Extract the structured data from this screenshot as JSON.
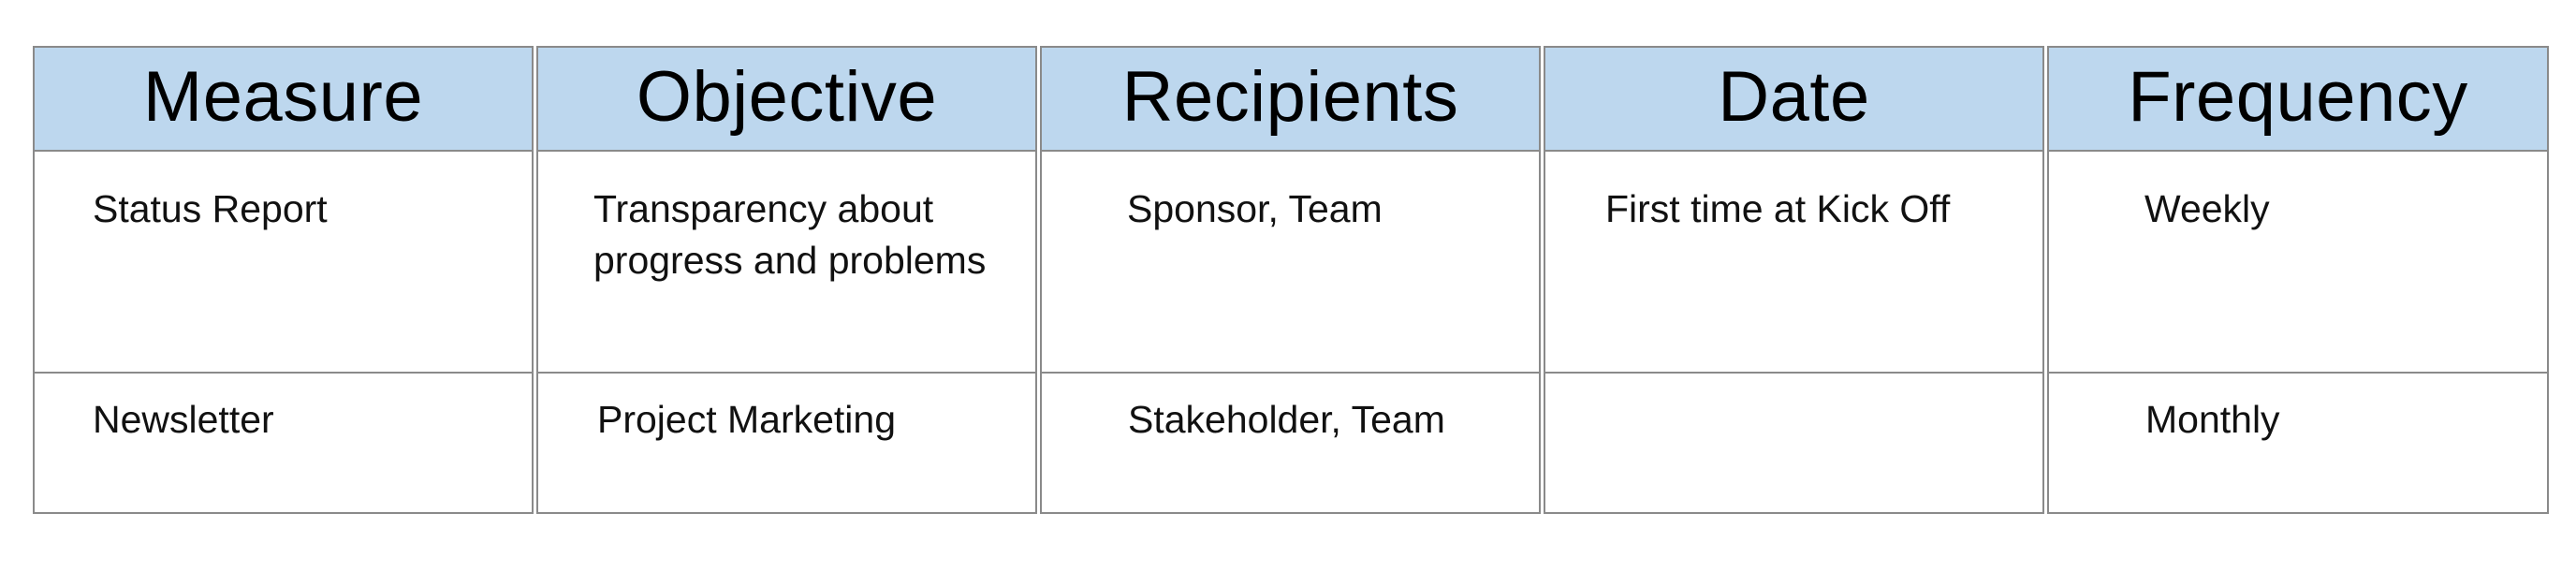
{
  "table": {
    "headers": [
      "Measure",
      "Objective",
      "Recipients",
      "Date",
      "Frequency"
    ],
    "rows": [
      [
        "Status Report",
        "Transparency about progress and problems",
        "Sponsor, Team",
        "First time at Kick Off",
        "Weekly"
      ],
      [
        "Newsletter",
        "Project Marketing",
        "Stakeholder, Team",
        "",
        "Monthly"
      ]
    ]
  },
  "colors": {
    "header_bg": "#bdd7ee",
    "border": "#8a8a8a"
  }
}
